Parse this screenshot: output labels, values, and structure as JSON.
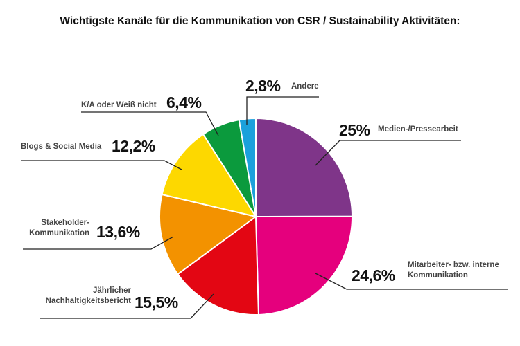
{
  "chart_data": {
    "type": "pie",
    "title": "Wichtigste Kanäle für die Kommunikation von CSR / Sustainability Aktivitäten:",
    "start_angle": "12 o'clock",
    "direction": "clockwise",
    "slices": [
      {
        "label": "Medien-/Pressearbeit",
        "value": 25,
        "display": "25%",
        "color": "#7f3589"
      },
      {
        "label": "Mitarbeiter- bzw. interne Kommunikation",
        "label_lines": [
          "Mitarbeiter- bzw. interne",
          "Kommunikation"
        ],
        "value": 24.6,
        "display": "24,6%",
        "color": "#e5007d"
      },
      {
        "label": "Jährlicher Nachhaltigkeitsbericht",
        "label_lines": [
          "Jährlicher",
          "Nachhaltigkeitsbericht"
        ],
        "value": 15.5,
        "display": "15,5%",
        "color": "#e30613"
      },
      {
        "label": "Stakeholder-Kommunikation",
        "label_lines": [
          "Stakeholder-",
          "Kommunikation"
        ],
        "value": 13.6,
        "display": "13,6%",
        "color": "#f39200"
      },
      {
        "label": "Blogs & Social Media",
        "value": 12.2,
        "display": "12,2%",
        "color": "#fdd800"
      },
      {
        "label": "K/A oder Weiß nicht",
        "value": 6.4,
        "display": "6,4%",
        "color": "#0b9a3d"
      },
      {
        "label": "Andere",
        "value": 2.8,
        "display": "2,8%",
        "color": "#1ba1dc"
      }
    ]
  }
}
